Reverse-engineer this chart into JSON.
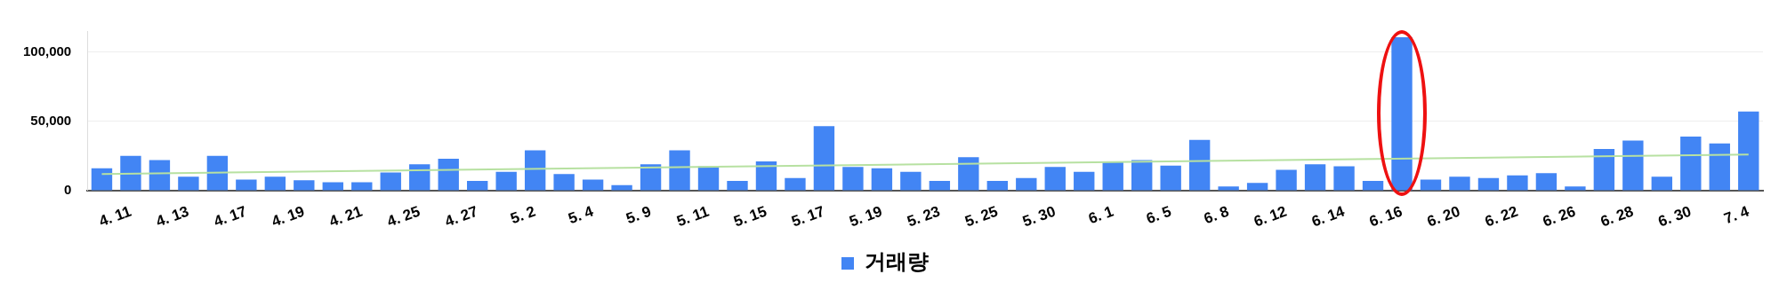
{
  "chart_data": {
    "type": "bar",
    "categories": [
      null,
      "4. 11",
      null,
      "4. 13",
      null,
      "4. 17",
      null,
      "4. 19",
      null,
      "4. 21",
      null,
      "4. 25",
      null,
      "4. 27",
      null,
      "5. 2",
      null,
      "5. 4",
      null,
      "5. 9",
      null,
      "5. 11",
      null,
      "5. 15",
      null,
      "5. 17",
      null,
      "5. 19",
      null,
      "5. 23",
      null,
      "5. 25",
      null,
      "5. 30",
      null,
      "6. 1",
      null,
      "6. 5",
      null,
      "6. 8",
      null,
      "6. 12",
      null,
      "6. 14",
      null,
      "6. 16",
      null,
      "6. 20",
      null,
      "6. 22",
      null,
      "6. 26",
      null,
      "6. 28",
      null,
      "6. 30",
      null,
      "7. 4"
    ],
    "series": [
      {
        "name": "거래량",
        "color": "#4285f4",
        "values": [
          16000,
          25000,
          22000,
          10000,
          25000,
          8000,
          10000,
          7500,
          6000,
          6000,
          13000,
          19000,
          23000,
          7000,
          13500,
          29000,
          12000,
          8000,
          4000,
          19000,
          29000,
          17500,
          7000,
          21000,
          9000,
          46500,
          17000,
          16000,
          13500,
          7000,
          24000,
          7000,
          9000,
          17000,
          13500,
          21000,
          22000,
          18000,
          36500,
          3000,
          5500,
          15000,
          19000,
          17500,
          7000,
          110500,
          8000,
          10000,
          9000,
          11000,
          12500,
          3000,
          30000,
          36000,
          10000,
          39000,
          34000,
          57000
        ]
      },
      {
        "type": "line",
        "color": "#b7e1a1",
        "values": [
          12000,
          null,
          null,
          null,
          null,
          null,
          null,
          null,
          null,
          null,
          null,
          null,
          null,
          null,
          null,
          null,
          null,
          null,
          null,
          null,
          null,
          null,
          null,
          null,
          null,
          null,
          null,
          null,
          null,
          null,
          null,
          null,
          null,
          null,
          null,
          null,
          null,
          null,
          null,
          null,
          null,
          null,
          null,
          null,
          null,
          null,
          null,
          null,
          null,
          null,
          null,
          null,
          null,
          null,
          null,
          null,
          null,
          26000
        ]
      }
    ],
    "ylim": [
      0,
      115000
    ],
    "yticks": [
      0,
      {
        "value": 50000,
        "label": "50,000"
      },
      {
        "value": 100000,
        "label": "100,000"
      }
    ],
    "grid": "y",
    "legend": "bottom"
  }
}
